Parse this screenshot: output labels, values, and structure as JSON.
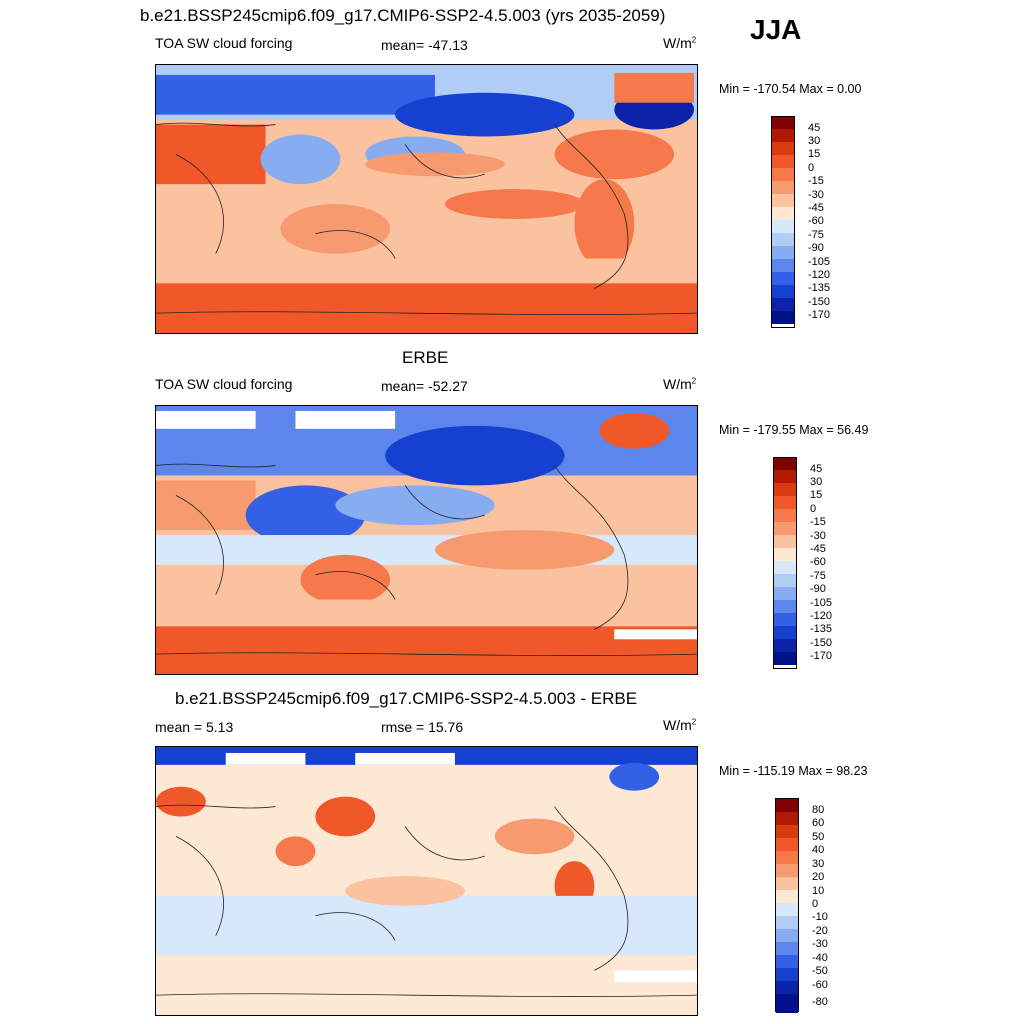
{
  "header": {
    "title": "b.e21.BSSP245cmip6.f09_g17.CMIP6-SSP2-4.5.003 (yrs 2035-2059)",
    "season": "JJA"
  },
  "panels": [
    {
      "panel_title": "",
      "left_label": "TOA SW cloud forcing",
      "center_label": "mean= -47.13",
      "units": "W/m",
      "units_sup": "2",
      "minmax": "Min = -170.54 Max =   0.00",
      "colorbar_ticks": [
        "45",
        "30",
        "15",
        "0",
        "-15",
        "-30",
        "-45",
        "-60",
        "-75",
        "-90",
        "-105",
        "-120",
        "-135",
        "-150",
        "-170"
      ]
    },
    {
      "panel_title": "ERBE",
      "left_label": "TOA SW cloud forcing",
      "center_label": "mean= -52.27",
      "units": "W/m",
      "units_sup": "2",
      "minmax": "Min = -179.55 Max =  56.49",
      "colorbar_ticks": [
        "45",
        "30",
        "15",
        "0",
        "-15",
        "-30",
        "-45",
        "-60",
        "-75",
        "-90",
        "-105",
        "-120",
        "-135",
        "-150",
        "-170"
      ]
    },
    {
      "panel_title": "b.e21.BSSP245cmip6.f09_g17.CMIP6-SSP2-4.5.003 - ERBE",
      "left_label": "mean =   5.13",
      "center_label": "rmse =  15.76",
      "units": "W/m",
      "units_sup": "2",
      "minmax": "Min = -115.19 Max =  98.23",
      "colorbar_ticks": [
        "80",
        "60",
        "50",
        "40",
        "30",
        "20",
        "10",
        "0",
        "-10",
        "-20",
        "-30",
        "-40",
        "-50",
        "-60",
        "-80"
      ]
    }
  ],
  "colors": {
    "abs_scale": [
      "#7f0000",
      "#b01a00",
      "#d93a10",
      "#f0582a",
      "#f5794a",
      "#f89a70",
      "#fbc2a0",
      "#fde8d4",
      "#d6e8fa",
      "#b0cdf5",
      "#88acf0",
      "#5d86ec",
      "#3361e5",
      "#1540d0",
      "#0a23a8",
      "#00128a"
    ],
    "diff_scale": [
      "#7f0000",
      "#b01a00",
      "#d93a10",
      "#f0582a",
      "#f5794a",
      "#f89a70",
      "#fbc2a0",
      "#fde8d4",
      "#d6e8fa",
      "#b0cdf5",
      "#88acf0",
      "#5d86ec",
      "#3361e5",
      "#1540d0",
      "#0a23a8",
      "#00128a"
    ]
  }
}
